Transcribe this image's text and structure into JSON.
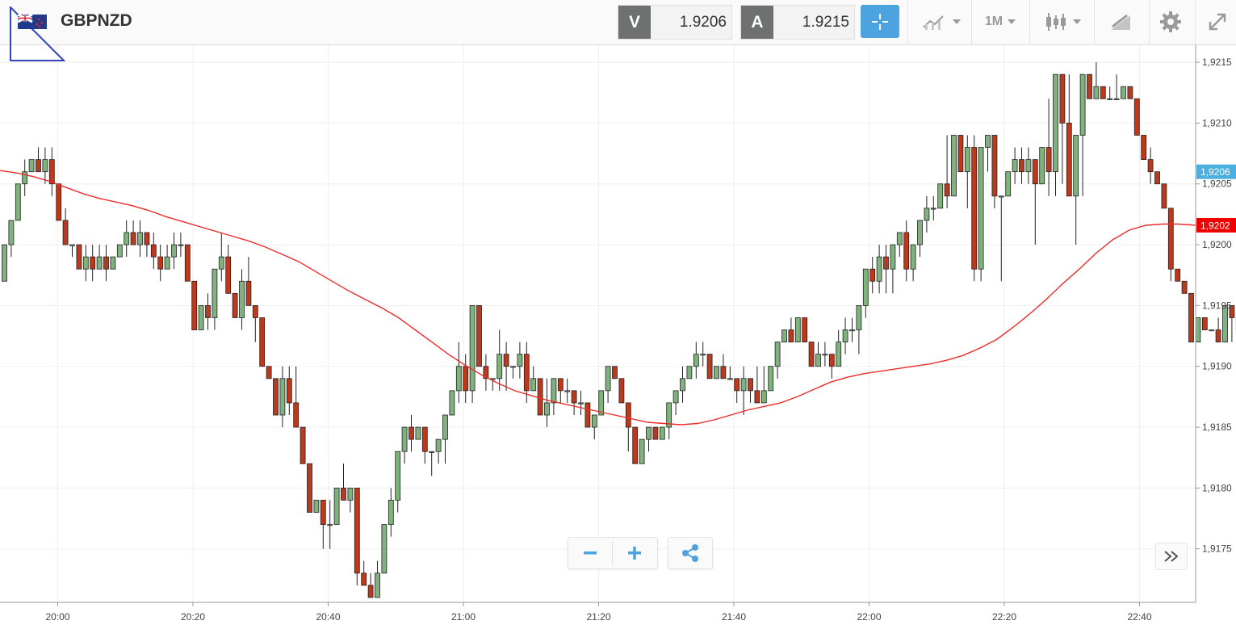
{
  "header": {
    "symbol": "GBPNZD",
    "sell_label": "V",
    "sell_value": "1.9206",
    "buy_label": "A",
    "buy_value": "1.9215",
    "timeframe": "1M"
  },
  "icons": [
    "flag-gb-nz-icon",
    "crosshair-icon",
    "indicators-icon",
    "timeframe-chevron-icon",
    "candlestick-type-icon",
    "drawing-tools-icon",
    "gear-icon",
    "expand-icon",
    "share-icon",
    "double-chevron-right-icon",
    "minus-icon",
    "plus-icon"
  ],
  "colors": {
    "up": "#7fb27c",
    "down": "#bb3a1e",
    "ma": "#ee2b2b",
    "bid_tag": "#4bb0e0",
    "ma_tag": "#ee0000",
    "accent": "#4da3e0"
  },
  "chart_data": {
    "type": "candlestick",
    "x_ticks": [
      "20:00",
      "20:20",
      "20:40",
      "21:00",
      "21:20",
      "21:40",
      "22:00",
      "22:20",
      "22:40"
    ],
    "y_ticks": [
      "1,9215",
      "1,9210",
      "1,9205",
      "1,9200",
      "1,9195",
      "1,9190",
      "1,9185",
      "1,9180",
      "1,9175"
    ],
    "ylim": [
      1.91706,
      1.92164
    ],
    "price_tags": [
      {
        "label": "1,9206",
        "value": 1.9206,
        "color": "#4bb0e0"
      },
      {
        "label": "1,9202",
        "value": 1.92016,
        "color": "#ee0000"
      }
    ],
    "candles_ohlc": [
      [
        1.9197,
        1.92,
        1.9197,
        1.92
      ],
      [
        1.92,
        1.9202,
        1.9199,
        1.9202
      ],
      [
        1.9202,
        1.9205,
        1.9202,
        1.9205
      ],
      [
        1.9205,
        1.9207,
        1.9204,
        1.9206
      ],
      [
        1.9206,
        1.9207,
        1.9206,
        1.9207
      ],
      [
        1.9207,
        1.9208,
        1.9206,
        1.9206
      ],
      [
        1.9206,
        1.9208,
        1.9205,
        1.9207
      ],
      [
        1.9207,
        1.9208,
        1.9204,
        1.9205
      ],
      [
        1.9205,
        1.9205,
        1.9202,
        1.9202
      ],
      [
        1.9202,
        1.9203,
        1.92,
        1.92
      ],
      [
        1.92,
        1.92,
        1.9199,
        1.92
      ],
      [
        1.92,
        1.92,
        1.9198,
        1.9198
      ],
      [
        1.9198,
        1.92,
        1.9197,
        1.9199
      ],
      [
        1.9199,
        1.92,
        1.9197,
        1.9198
      ],
      [
        1.9198,
        1.92,
        1.9198,
        1.9199
      ],
      [
        1.9199,
        1.92,
        1.9197,
        1.9198
      ],
      [
        1.9198,
        1.9199,
        1.9198,
        1.9199
      ],
      [
        1.9199,
        1.92,
        1.9199,
        1.92
      ],
      [
        1.92,
        1.9202,
        1.9199,
        1.9201
      ],
      [
        1.9201,
        1.9202,
        1.92,
        1.92
      ],
      [
        1.92,
        1.9202,
        1.9199,
        1.9201
      ],
      [
        1.9201,
        1.9201,
        1.9199,
        1.92
      ],
      [
        1.92,
        1.9201,
        1.9198,
        1.9199
      ],
      [
        1.9199,
        1.92,
        1.9197,
        1.9198
      ],
      [
        1.9198,
        1.92,
        1.9198,
        1.9199
      ],
      [
        1.9199,
        1.9201,
        1.9198,
        1.92
      ],
      [
        1.92,
        1.9201,
        1.9199,
        1.92
      ],
      [
        1.92,
        1.92,
        1.9197,
        1.9197
      ],
      [
        1.9197,
        1.9197,
        1.9193,
        1.9193
      ],
      [
        1.9193,
        1.9195,
        1.9193,
        1.9195
      ],
      [
        1.9195,
        1.9196,
        1.9193,
        1.9194
      ],
      [
        1.9194,
        1.9198,
        1.9193,
        1.9198
      ],
      [
        1.9198,
        1.9201,
        1.9197,
        1.9199
      ],
      [
        1.9199,
        1.92,
        1.9196,
        1.9196
      ],
      [
        1.9196,
        1.9196,
        1.9194,
        1.9194
      ],
      [
        1.9194,
        1.9198,
        1.9193,
        1.9197
      ],
      [
        1.9197,
        1.9199,
        1.9195,
        1.9195
      ],
      [
        1.9195,
        1.9195,
        1.9192,
        1.9194
      ],
      [
        1.9194,
        1.9194,
        1.919,
        1.919
      ],
      [
        1.919,
        1.919,
        1.9189,
        1.9189
      ],
      [
        1.9189,
        1.9189,
        1.9186,
        1.9186
      ],
      [
        1.9186,
        1.919,
        1.9185,
        1.9189
      ],
      [
        1.9189,
        1.919,
        1.9186,
        1.9187
      ],
      [
        1.9187,
        1.919,
        1.9185,
        1.9185
      ],
      [
        1.9185,
        1.9185,
        1.9182,
        1.9182
      ],
      [
        1.9182,
        1.9182,
        1.9178,
        1.9178
      ],
      [
        1.9178,
        1.9179,
        1.9178,
        1.9179
      ],
      [
        1.9179,
        1.9179,
        1.9175,
        1.9177
      ],
      [
        1.9177,
        1.9179,
        1.9175,
        1.9177
      ],
      [
        1.9177,
        1.918,
        1.9177,
        1.918
      ],
      [
        1.918,
        1.9182,
        1.9179,
        1.9179
      ],
      [
        1.9179,
        1.918,
        1.9178,
        1.918
      ],
      [
        1.918,
        1.918,
        1.9172,
        1.9173
      ],
      [
        1.9173,
        1.9174,
        1.9172,
        1.9172
      ],
      [
        1.9172,
        1.9173,
        1.9171,
        1.9171
      ],
      [
        1.9171,
        1.9174,
        1.9171,
        1.9173
      ],
      [
        1.9173,
        1.9177,
        1.9173,
        1.9177
      ],
      [
        1.9177,
        1.918,
        1.9176,
        1.9179
      ],
      [
        1.9179,
        1.9183,
        1.9178,
        1.9183
      ],
      [
        1.9183,
        1.9185,
        1.9182,
        1.9185
      ],
      [
        1.9185,
        1.9186,
        1.9183,
        1.9184
      ],
      [
        1.9184,
        1.9185,
        1.9184,
        1.9185
      ],
      [
        1.9185,
        1.9185,
        1.9182,
        1.9183
      ],
      [
        1.9183,
        1.9183,
        1.9181,
        1.9183
      ],
      [
        1.9183,
        1.9184,
        1.9182,
        1.9184
      ],
      [
        1.9184,
        1.9186,
        1.9182,
        1.9186
      ],
      [
        1.9186,
        1.9188,
        1.9186,
        1.9188
      ],
      [
        1.9188,
        1.9192,
        1.9187,
        1.919
      ],
      [
        1.919,
        1.9191,
        1.9187,
        1.9188
      ],
      [
        1.9188,
        1.9195,
        1.9187,
        1.9195
      ],
      [
        1.9195,
        1.9195,
        1.919,
        1.919
      ],
      [
        1.919,
        1.9191,
        1.9188,
        1.9189
      ],
      [
        1.9189,
        1.9189,
        1.9188,
        1.9189
      ],
      [
        1.9189,
        1.9193,
        1.9188,
        1.9191
      ],
      [
        1.9191,
        1.9192,
        1.9188,
        1.919
      ],
      [
        1.919,
        1.919,
        1.9189,
        1.919
      ],
      [
        1.919,
        1.9192,
        1.9189,
        1.9191
      ],
      [
        1.9191,
        1.9192,
        1.9187,
        1.9188
      ],
      [
        1.9188,
        1.919,
        1.9188,
        1.9189
      ],
      [
        1.9189,
        1.9189,
        1.9186,
        1.9186
      ],
      [
        1.9186,
        1.9189,
        1.9185,
        1.9187
      ],
      [
        1.9187,
        1.9189,
        1.9186,
        1.9189
      ],
      [
        1.9189,
        1.9189,
        1.9187,
        1.9188
      ],
      [
        1.9188,
        1.9189,
        1.9187,
        1.9188
      ],
      [
        1.9188,
        1.9188,
        1.9186,
        1.9187
      ],
      [
        1.9187,
        1.9188,
        1.9186,
        1.9187
      ],
      [
        1.9187,
        1.9187,
        1.9185,
        1.9185
      ],
      [
        1.9185,
        1.9186,
        1.9184,
        1.9186
      ],
      [
        1.9186,
        1.9188,
        1.9186,
        1.9188
      ],
      [
        1.9188,
        1.919,
        1.9187,
        1.919
      ],
      [
        1.919,
        1.919,
        1.9189,
        1.9189
      ],
      [
        1.9189,
        1.9189,
        1.9187,
        1.9187
      ],
      [
        1.9187,
        1.9187,
        1.9183,
        1.9185
      ],
      [
        1.9185,
        1.9185,
        1.9182,
        1.9182
      ],
      [
        1.9182,
        1.9184,
        1.9182,
        1.9184
      ],
      [
        1.9184,
        1.9185,
        1.9183,
        1.9185
      ],
      [
        1.9185,
        1.9185,
        1.9184,
        1.9184
      ],
      [
        1.9184,
        1.9185,
        1.9184,
        1.9185
      ],
      [
        1.9185,
        1.9187,
        1.9184,
        1.9187
      ],
      [
        1.9187,
        1.9188,
        1.9186,
        1.9188
      ],
      [
        1.9188,
        1.919,
        1.9187,
        1.9189
      ],
      [
        1.9189,
        1.919,
        1.9189,
        1.919
      ],
      [
        1.919,
        1.9192,
        1.9189,
        1.9191
      ],
      [
        1.9191,
        1.9192,
        1.919,
        1.9191
      ],
      [
        1.9191,
        1.9191,
        1.9189,
        1.9189
      ],
      [
        1.9189,
        1.919,
        1.9189,
        1.919
      ],
      [
        1.919,
        1.9191,
        1.9189,
        1.9189
      ],
      [
        1.9189,
        1.919,
        1.9189,
        1.9189
      ],
      [
        1.9189,
        1.9189,
        1.9187,
        1.9188
      ],
      [
        1.9188,
        1.919,
        1.9186,
        1.9189
      ],
      [
        1.9189,
        1.9189,
        1.9187,
        1.9188
      ],
      [
        1.9188,
        1.919,
        1.9187,
        1.9187
      ],
      [
        1.9187,
        1.919,
        1.9187,
        1.9188
      ],
      [
        1.9188,
        1.919,
        1.9188,
        1.919
      ],
      [
        1.919,
        1.9192,
        1.9189,
        1.9192
      ],
      [
        1.9192,
        1.9193,
        1.9192,
        1.9193
      ],
      [
        1.9193,
        1.9194,
        1.9192,
        1.9192
      ],
      [
        1.9192,
        1.9194,
        1.9192,
        1.9194
      ],
      [
        1.9194,
        1.9194,
        1.9192,
        1.9192
      ],
      [
        1.9192,
        1.9192,
        1.919,
        1.919
      ],
      [
        1.919,
        1.9192,
        1.919,
        1.9191
      ],
      [
        1.9191,
        1.9192,
        1.919,
        1.9191
      ],
      [
        1.9191,
        1.9191,
        1.9189,
        1.919
      ],
      [
        1.919,
        1.9193,
        1.919,
        1.9192
      ],
      [
        1.9192,
        1.9194,
        1.9191,
        1.9193
      ],
      [
        1.9193,
        1.9194,
        1.9192,
        1.9193
      ],
      [
        1.9193,
        1.9195,
        1.9191,
        1.9195
      ],
      [
        1.9195,
        1.9198,
        1.9194,
        1.9198
      ],
      [
        1.9198,
        1.9199,
        1.9196,
        1.9197
      ],
      [
        1.9197,
        1.92,
        1.9196,
        1.9199
      ],
      [
        1.9199,
        1.92,
        1.9196,
        1.9198
      ],
      [
        1.9198,
        1.92,
        1.9196,
        1.92
      ],
      [
        1.92,
        1.9201,
        1.9199,
        1.9201
      ],
      [
        1.9201,
        1.9202,
        1.9197,
        1.9198
      ],
      [
        1.9198,
        1.92,
        1.9197,
        1.92
      ],
      [
        1.92,
        1.9202,
        1.9199,
        1.9202
      ],
      [
        1.9202,
        1.9204,
        1.9201,
        1.9203
      ],
      [
        1.9203,
        1.9204,
        1.9202,
        1.9203
      ],
      [
        1.9203,
        1.9205,
        1.9203,
        1.9205
      ],
      [
        1.9205,
        1.9209,
        1.9203,
        1.9204
      ],
      [
        1.9204,
        1.9209,
        1.9204,
        1.9209
      ],
      [
        1.9209,
        1.9209,
        1.9206,
        1.9206
      ],
      [
        1.9206,
        1.9209,
        1.9203,
        1.9208
      ],
      [
        1.9208,
        1.9209,
        1.9197,
        1.9198
      ],
      [
        1.9198,
        1.9208,
        1.9197,
        1.9208
      ],
      [
        1.9208,
        1.9209,
        1.9206,
        1.9209
      ],
      [
        1.9209,
        1.9209,
        1.9203,
        1.9204
      ],
      [
        1.9204,
        1.9204,
        1.9197,
        1.9204
      ],
      [
        1.9204,
        1.9206,
        1.9204,
        1.9206
      ],
      [
        1.9206,
        1.9208,
        1.9205,
        1.9207
      ],
      [
        1.9207,
        1.9208,
        1.9205,
        1.9206
      ],
      [
        1.9206,
        1.9208,
        1.9205,
        1.9207
      ],
      [
        1.9207,
        1.9207,
        1.92,
        1.9205
      ],
      [
        1.9205,
        1.9208,
        1.9205,
        1.9208
      ],
      [
        1.9208,
        1.9212,
        1.9204,
        1.9206
      ],
      [
        1.9206,
        1.9214,
        1.9204,
        1.9214
      ],
      [
        1.9214,
        1.9214,
        1.9205,
        1.921
      ],
      [
        1.921,
        1.9214,
        1.9209,
        1.9204
      ],
      [
        1.9204,
        1.9209,
        1.92,
        1.9209
      ],
      [
        1.9209,
        1.9213,
        1.9204,
        1.9214
      ],
      [
        1.9214,
        1.9214,
        1.9212,
        1.9212
      ],
      [
        1.9212,
        1.9215,
        1.9212,
        1.9213
      ],
      [
        1.9213,
        1.9213,
        1.9212,
        1.9212
      ],
      [
        1.9212,
        1.9213,
        1.9212,
        1.9212
      ],
      [
        1.9212,
        1.9214,
        1.9212,
        1.9212
      ],
      [
        1.9212,
        1.9213,
        1.9212,
        1.9213
      ],
      [
        1.9213,
        1.9213,
        1.9212,
        1.9212
      ],
      [
        1.9212,
        1.9212,
        1.9209,
        1.9209
      ],
      [
        1.9209,
        1.9209,
        1.9208,
        1.9207
      ],
      [
        1.9207,
        1.9208,
        1.9205,
        1.9206
      ],
      [
        1.9206,
        1.9206,
        1.9205,
        1.9205
      ],
      [
        1.9205,
        1.9205,
        1.9203,
        1.9203
      ],
      [
        1.9203,
        1.9203,
        1.9197,
        1.9198
      ],
      [
        1.9198,
        1.9198,
        1.9197,
        1.9197
      ],
      [
        1.9197,
        1.9197,
        1.9196,
        1.9196
      ],
      [
        1.9196,
        1.9196,
        1.9192,
        1.9192
      ],
      [
        1.9192,
        1.9194,
        1.9192,
        1.9194
      ],
      [
        1.9194,
        1.9194,
        1.9193,
        1.9193
      ],
      [
        1.9193,
        1.9193,
        1.9193,
        1.9193
      ],
      [
        1.9193,
        1.9194,
        1.9192,
        1.9192
      ],
      [
        1.9192,
        1.9195,
        1.9192,
        1.9195
      ],
      [
        1.9195,
        1.9195,
        1.9192,
        1.9194
      ],
      [
        1.9194,
        1.9194,
        1.9192,
        1.9193
      ],
      [
        1.9193,
        1.9193,
        1.9191,
        1.9192
      ],
      [
        1.9192,
        1.9192,
        1.919,
        1.919
      ],
      [
        1.919,
        1.9191,
        1.919,
        1.9191
      ],
      [
        1.9191,
        1.9192,
        1.919,
        1.9192
      ],
      [
        1.9192,
        1.9192,
        1.9191,
        1.9192
      ],
      [
        1.9192,
        1.9194,
        1.9192,
        1.9194
      ],
      [
        1.9194,
        1.9199,
        1.9194,
        1.9199
      ]
    ],
    "moving_average": [
      1.92061,
      1.92059,
      1.92056,
      1.92052,
      1.92047,
      1.92042,
      1.92038,
      1.92035,
      1.92032,
      1.92028,
      1.92023,
      1.92019,
      1.92015,
      1.92011,
      1.92007,
      1.92003,
      1.91998,
      1.91992,
      1.91986,
      1.91978,
      1.9197,
      1.91962,
      1.91955,
      1.91948,
      1.9194,
      1.9193,
      1.9192,
      1.9191,
      1.91901,
      1.91893,
      1.91886,
      1.9188,
      1.91876,
      1.91872,
      1.91869,
      1.91866,
      1.91863,
      1.9186,
      1.91857,
      1.91854,
      1.91853,
      1.91852,
      1.91853,
      1.91856,
      1.9186,
      1.91864,
      1.91867,
      1.9187,
      1.91875,
      1.91881,
      1.91887,
      1.91891,
      1.91894,
      1.91896,
      1.91898,
      1.919,
      1.91902,
      1.91905,
      1.91909,
      1.91915,
      1.91922,
      1.91932,
      1.91943,
      1.91955,
      1.91968,
      1.9198,
      1.91993,
      1.92004,
      1.92012,
      1.92016,
      1.92017,
      1.92017,
      1.92016
    ]
  }
}
